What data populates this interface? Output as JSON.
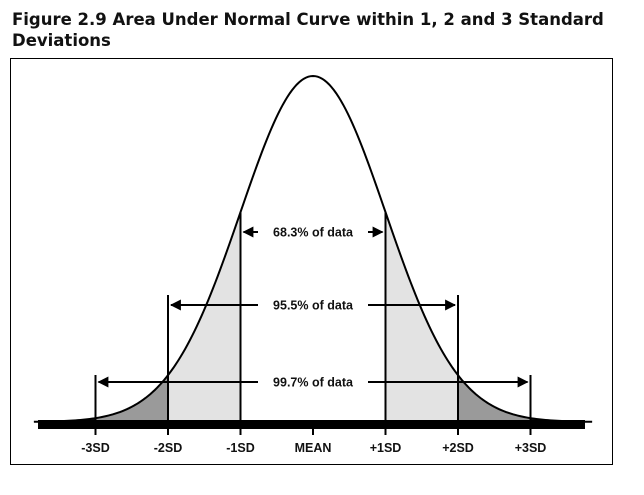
{
  "figure": {
    "number": "Figure 2.9",
    "title": "Area Under Normal Curve within 1, 2 and 3 Standard Deviations"
  },
  "chart_data": {
    "type": "area",
    "distribution": "normal",
    "mean": 0,
    "sd": 1,
    "x_range": [
      -3.85,
      3.85
    ],
    "tick_labels": [
      {
        "x": -3,
        "label": "-3SD"
      },
      {
        "x": -2,
        "label": "-2SD"
      },
      {
        "x": -1,
        "label": "-1SD"
      },
      {
        "x": 0,
        "label": "MEAN"
      },
      {
        "x": 1,
        "label": "+1SD"
      },
      {
        "x": 2,
        "label": "+2SD"
      },
      {
        "x": 3,
        "label": "+3SD"
      }
    ],
    "regions": [
      {
        "range": [
          -1,
          1
        ],
        "fill": "#ffffff"
      },
      {
        "range": [
          -2,
          -1
        ],
        "fill": "#e3e3e3"
      },
      {
        "range": [
          1,
          2
        ],
        "fill": "#e3e3e3"
      },
      {
        "range": [
          -3,
          -2
        ],
        "fill": "#9a9a9a"
      },
      {
        "range": [
          2,
          3
        ],
        "fill": "#9a9a9a"
      },
      {
        "range": [
          -3.85,
          -3
        ],
        "fill": "#1a1a1a"
      },
      {
        "range": [
          3,
          3.85
        ],
        "fill": "#1a1a1a"
      }
    ],
    "annotations": [
      {
        "range": [
          -1,
          1
        ],
        "percent": 68.3,
        "label": "68.3% of data"
      },
      {
        "range": [
          -2,
          2
        ],
        "percent": 95.5,
        "label": "95.5% of data"
      },
      {
        "range": [
          -3,
          3
        ],
        "percent": 99.7,
        "label": "99.7% of data"
      }
    ],
    "colors": {
      "curve": "#000000",
      "axis": "#000000"
    }
  }
}
